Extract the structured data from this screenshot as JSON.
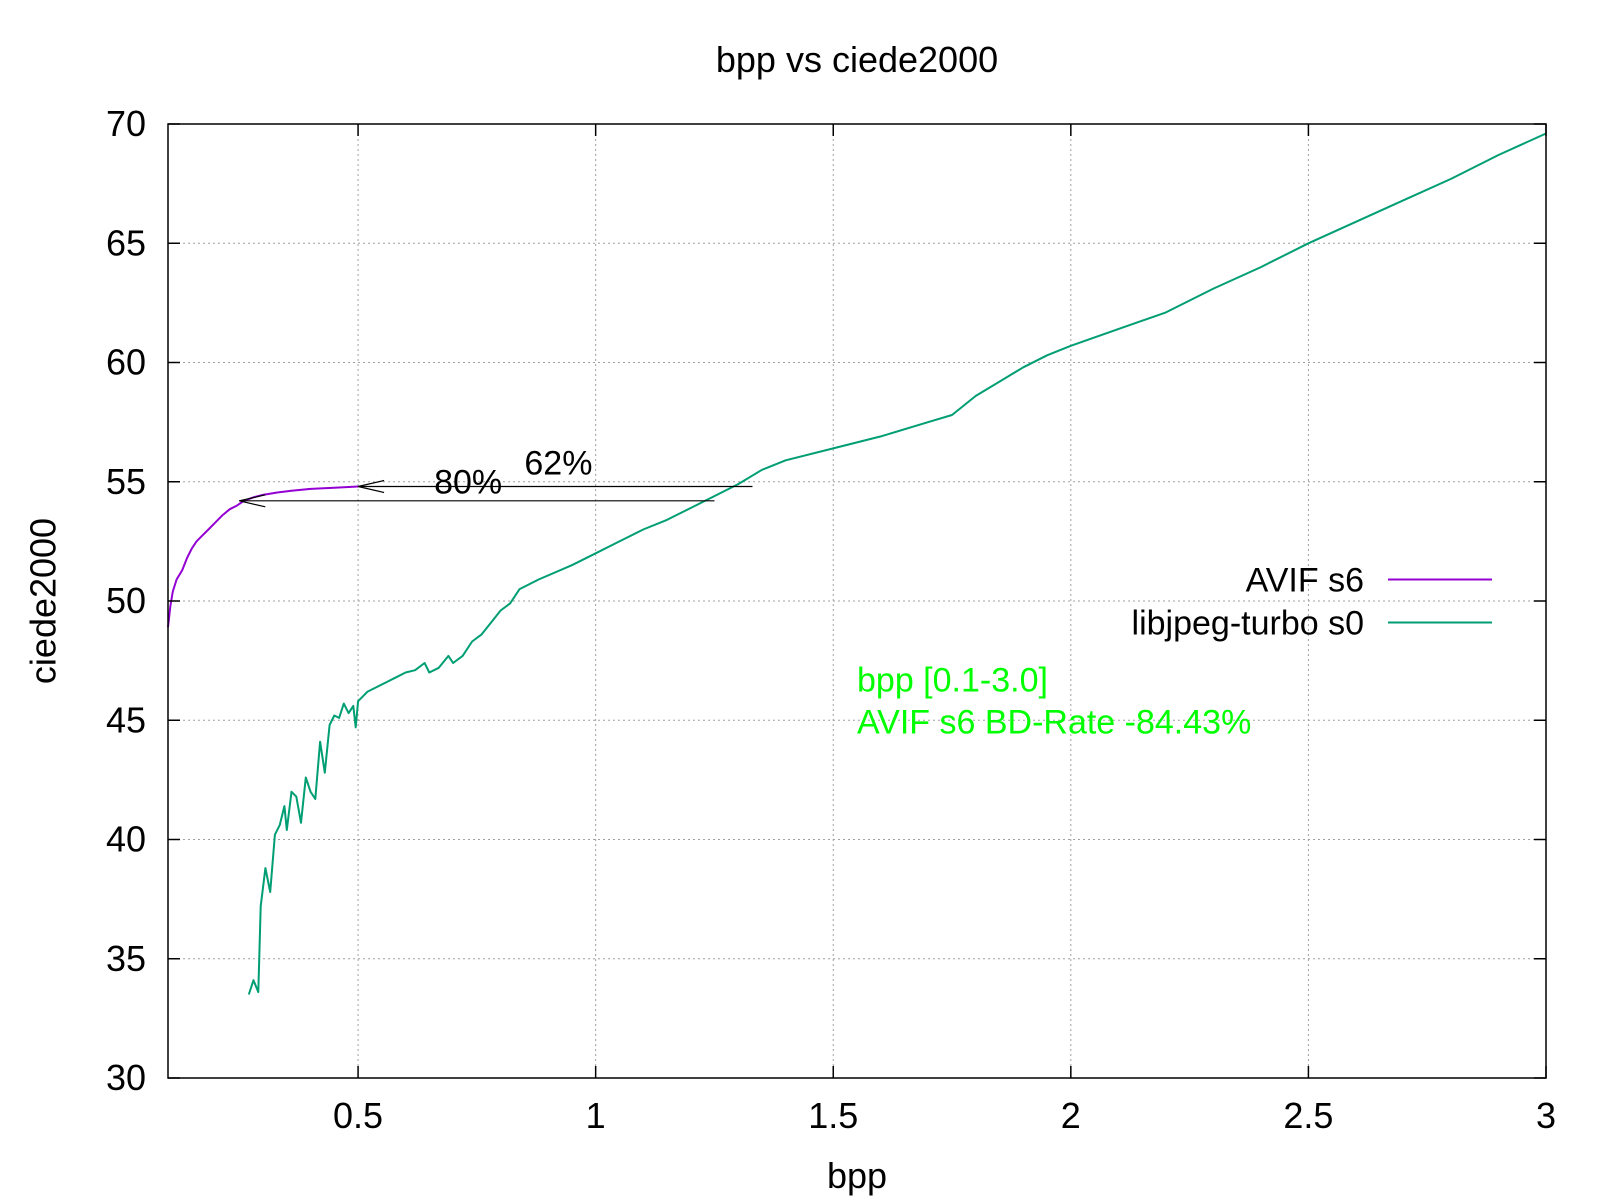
{
  "chart_data": {
    "type": "line",
    "title": "bpp vs ciede2000",
    "xlabel": "bpp",
    "ylabel": "ciede2000",
    "xlim": [
      0.1,
      3.0
    ],
    "ylim": [
      30,
      70
    ],
    "xticks": [
      0.5,
      1,
      1.5,
      2,
      2.5,
      3
    ],
    "xtick_labels": [
      "0.5",
      "1",
      "1.5",
      "2",
      "2.5",
      "3"
    ],
    "yticks": [
      30,
      35,
      40,
      45,
      50,
      55,
      60,
      65,
      70
    ],
    "ytick_labels": [
      "30",
      "35",
      "40",
      "45",
      "50",
      "55",
      "60",
      "65",
      "70"
    ],
    "grid": true,
    "legend_position": "right",
    "series": [
      {
        "name": "AVIF s6",
        "color": "#9400d3",
        "points": [
          [
            0.1,
            48.9
          ],
          [
            0.105,
            49.8
          ],
          [
            0.11,
            50.4
          ],
          [
            0.118,
            50.9
          ],
          [
            0.13,
            51.3
          ],
          [
            0.14,
            51.8
          ],
          [
            0.15,
            52.2
          ],
          [
            0.16,
            52.5
          ],
          [
            0.17,
            52.7
          ],
          [
            0.185,
            53.0
          ],
          [
            0.2,
            53.3
          ],
          [
            0.215,
            53.6
          ],
          [
            0.23,
            53.85
          ],
          [
            0.245,
            54.0
          ],
          [
            0.26,
            54.2
          ],
          [
            0.28,
            54.35
          ],
          [
            0.3,
            54.45
          ],
          [
            0.33,
            54.55
          ],
          [
            0.36,
            54.62
          ],
          [
            0.4,
            54.7
          ],
          [
            0.45,
            54.75
          ],
          [
            0.5,
            54.8
          ]
        ]
      },
      {
        "name": "libjpeg-turbo s0",
        "color": "#009e73",
        "points": [
          [
            0.27,
            33.5
          ],
          [
            0.28,
            34.1
          ],
          [
            0.29,
            33.6
          ],
          [
            0.295,
            37.2
          ],
          [
            0.305,
            38.8
          ],
          [
            0.315,
            37.8
          ],
          [
            0.325,
            40.2
          ],
          [
            0.335,
            40.6
          ],
          [
            0.345,
            41.4
          ],
          [
            0.35,
            40.4
          ],
          [
            0.36,
            42.0
          ],
          [
            0.37,
            41.8
          ],
          [
            0.38,
            40.7
          ],
          [
            0.39,
            42.6
          ],
          [
            0.4,
            42.0
          ],
          [
            0.41,
            41.7
          ],
          [
            0.42,
            44.1
          ],
          [
            0.43,
            42.8
          ],
          [
            0.44,
            44.8
          ],
          [
            0.45,
            45.2
          ],
          [
            0.46,
            45.1
          ],
          [
            0.47,
            45.7
          ],
          [
            0.48,
            45.3
          ],
          [
            0.49,
            45.6
          ],
          [
            0.495,
            44.7
          ],
          [
            0.5,
            45.8
          ],
          [
            0.52,
            46.2
          ],
          [
            0.54,
            46.4
          ],
          [
            0.56,
            46.6
          ],
          [
            0.58,
            46.8
          ],
          [
            0.6,
            47.0
          ],
          [
            0.62,
            47.1
          ],
          [
            0.64,
            47.4
          ],
          [
            0.65,
            47.0
          ],
          [
            0.67,
            47.2
          ],
          [
            0.69,
            47.7
          ],
          [
            0.7,
            47.4
          ],
          [
            0.72,
            47.7
          ],
          [
            0.74,
            48.3
          ],
          [
            0.76,
            48.6
          ],
          [
            0.78,
            49.1
          ],
          [
            0.8,
            49.6
          ],
          [
            0.82,
            49.9
          ],
          [
            0.84,
            50.5
          ],
          [
            0.88,
            50.9
          ],
          [
            0.95,
            51.5
          ],
          [
            1.0,
            52.0
          ],
          [
            1.05,
            52.5
          ],
          [
            1.1,
            53.0
          ],
          [
            1.15,
            53.4
          ],
          [
            1.2,
            53.9
          ],
          [
            1.25,
            54.4
          ],
          [
            1.3,
            54.9
          ],
          [
            1.35,
            55.5
          ],
          [
            1.4,
            55.9
          ],
          [
            1.5,
            56.4
          ],
          [
            1.6,
            56.9
          ],
          [
            1.7,
            57.5
          ],
          [
            1.75,
            57.8
          ],
          [
            1.8,
            58.6
          ],
          [
            1.9,
            59.8
          ],
          [
            1.95,
            60.3
          ],
          [
            2.0,
            60.7
          ],
          [
            2.1,
            61.4
          ],
          [
            2.2,
            62.1
          ],
          [
            2.3,
            63.1
          ],
          [
            2.4,
            64.0
          ],
          [
            2.5,
            65.0
          ],
          [
            2.6,
            65.9
          ],
          [
            2.7,
            66.8
          ],
          [
            2.8,
            67.7
          ],
          [
            2.9,
            68.7
          ],
          [
            3.0,
            69.6
          ]
        ]
      }
    ],
    "annotations": [
      {
        "text": "62%",
        "arrow_from": [
          1.33,
          54.8
        ],
        "arrow_to": [
          0.5,
          54.8
        ],
        "label_at": [
          0.85,
          55.3
        ]
      },
      {
        "text": "80%",
        "arrow_from": [
          1.25,
          54.2
        ],
        "arrow_to": [
          0.25,
          54.2
        ],
        "label_at": [
          0.66,
          54.5
        ]
      }
    ],
    "stats_text": {
      "line1": "bpp [0.1-3.0]",
      "line2": "AVIF s6 BD-Rate -84.43%",
      "color": "#00ff00",
      "anchor": [
        1.55,
        46.2
      ]
    }
  }
}
